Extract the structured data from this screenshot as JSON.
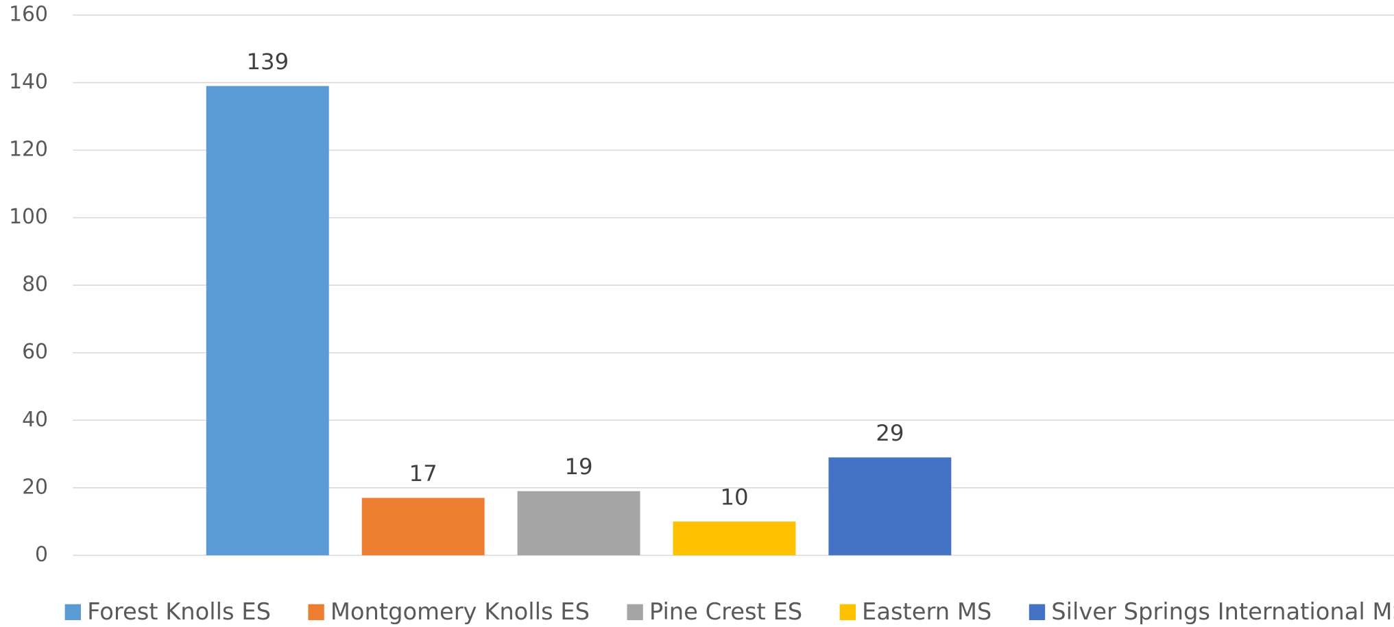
{
  "chart_data": {
    "type": "bar",
    "categories": [
      null
    ],
    "series": [
      {
        "name": "Forest Knolls ES",
        "color": "#5b9bd5",
        "values": [
          139
        ]
      },
      {
        "name": "Montgomery Knolls ES",
        "color": "#ed7d31",
        "values": [
          17
        ]
      },
      {
        "name": "Pine Crest ES",
        "color": "#a5a5a5",
        "values": [
          19
        ]
      },
      {
        "name": "Eastern MS",
        "color": "#ffc000",
        "values": [
          10
        ]
      },
      {
        "name": "Silver Springs International MS",
        "color": "#4472c4",
        "values": [
          29
        ]
      }
    ],
    "ylim": [
      0,
      160
    ],
    "yticks": [
      0,
      20,
      40,
      60,
      80,
      100,
      120,
      140,
      160
    ],
    "grid": true,
    "legend": "bottom"
  }
}
